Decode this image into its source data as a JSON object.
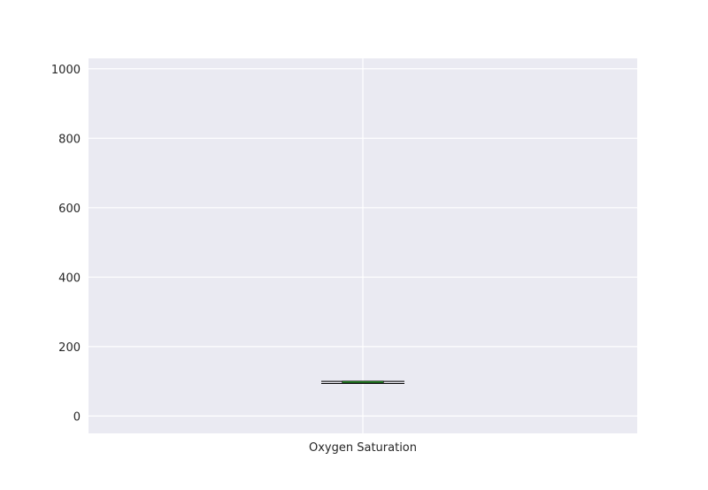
{
  "colors": {
    "background": "#eaeaf2",
    "grid": "#ffffff",
    "box": "#000000",
    "median": "#2ca02c"
  },
  "chart_data": {
    "type": "box",
    "categories": [
      "Oxygen Saturation"
    ],
    "boxes": [
      {
        "category": "Oxygen Saturation",
        "whisker_low": 94,
        "q1": 96,
        "median": 98,
        "q3": 100,
        "whisker_high": 100,
        "outliers": []
      }
    ],
    "ylim": [
      -50,
      1030
    ],
    "yticks": [
      0,
      200,
      400,
      600,
      800,
      1000
    ],
    "grid": true,
    "title": "",
    "xlabel": "",
    "ylabel": ""
  }
}
